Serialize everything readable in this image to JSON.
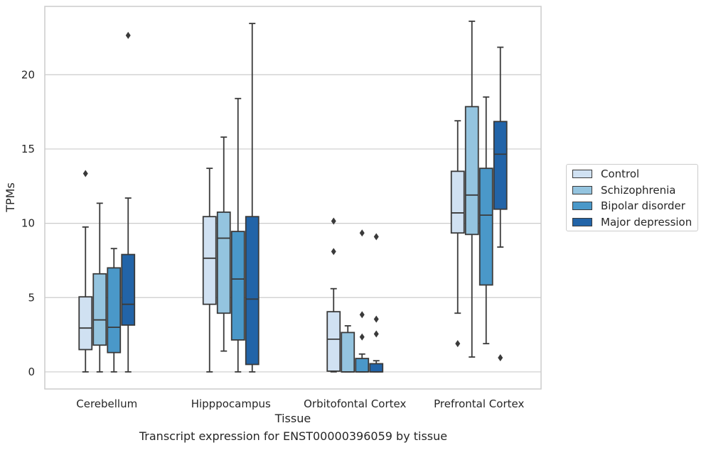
{
  "chart_data": {
    "type": "box",
    "title": "",
    "caption": "Transcript expression for ENST00000396059 by tissue",
    "xlabel": "Tissue",
    "ylabel": "TPMs",
    "ylim": [
      -1.15,
      24.6
    ],
    "yticks": [
      0,
      5,
      10,
      15,
      20
    ],
    "grid": true,
    "legend_position": "right",
    "categories": [
      "Cerebellum",
      "Hipppocampus",
      "Orbitofontal Cortex",
      "Prefrontal Cortex"
    ],
    "series": [
      {
        "name": "Control",
        "color": "#d0e1f2",
        "boxes": [
          {
            "whislo": 0,
            "q1": 1.5,
            "med": 2.95,
            "q3": 5.05,
            "whishi": 9.75,
            "fliers": [
              13.35
            ]
          },
          {
            "whislo": 0,
            "q1": 4.55,
            "med": 7.65,
            "q3": 10.45,
            "whishi": 13.7,
            "fliers": []
          },
          {
            "whislo": 0,
            "q1": 0.05,
            "med": 2.2,
            "q3": 4.05,
            "whishi": 5.6,
            "fliers": [
              8.1,
              10.15
            ]
          },
          {
            "whislo": 3.95,
            "q1": 9.35,
            "med": 10.7,
            "q3": 13.5,
            "whishi": 16.9,
            "fliers": [
              1.9
            ]
          }
        ]
      },
      {
        "name": "Schizophrenia",
        "color": "#94c4df",
        "boxes": [
          {
            "whislo": 0,
            "q1": 1.8,
            "med": 3.5,
            "q3": 6.6,
            "whishi": 11.35,
            "fliers": []
          },
          {
            "whislo": 1.4,
            "q1": 3.95,
            "med": 9.0,
            "q3": 10.75,
            "whishi": 15.8,
            "fliers": []
          },
          {
            "whislo": 0,
            "q1": 0,
            "med": 0,
            "q3": 2.65,
            "whishi": 3.1,
            "fliers": []
          },
          {
            "whislo": 1.0,
            "q1": 9.25,
            "med": 11.9,
            "q3": 17.85,
            "whishi": 23.6,
            "fliers": []
          }
        ]
      },
      {
        "name": "Bipolar disorder",
        "color": "#4a98c9",
        "boxes": [
          {
            "whislo": 0,
            "q1": 1.3,
            "med": 3.0,
            "q3": 7.0,
            "whishi": 8.3,
            "fliers": []
          },
          {
            "whislo": 0,
            "q1": 2.15,
            "med": 6.25,
            "q3": 9.45,
            "whishi": 18.4,
            "fliers": []
          },
          {
            "whislo": 0,
            "q1": 0,
            "med": 0,
            "q3": 0.9,
            "whishi": 1.2,
            "fliers": [
              2.35,
              3.85,
              9.35
            ]
          },
          {
            "whislo": 1.9,
            "q1": 5.85,
            "med": 10.55,
            "q3": 13.7,
            "whishi": 18.5,
            "fliers": []
          }
        ]
      },
      {
        "name": "Major depression",
        "color": "#2264a8",
        "boxes": [
          {
            "whislo": 0,
            "q1": 3.15,
            "med": 4.55,
            "q3": 7.9,
            "whishi": 11.7,
            "fliers": [
              22.65
            ]
          },
          {
            "whislo": 0,
            "q1": 0.5,
            "med": 4.9,
            "q3": 10.45,
            "whishi": 23.45,
            "fliers": []
          },
          {
            "whislo": 0,
            "q1": 0,
            "med": 0,
            "q3": 0.55,
            "whishi": 0.75,
            "fliers": [
              2.55,
              3.55,
              9.1
            ]
          },
          {
            "whislo": 8.4,
            "q1": 10.95,
            "med": 14.65,
            "q3": 16.85,
            "whishi": 21.85,
            "fliers": [
              0.95
            ]
          }
        ]
      }
    ]
  }
}
